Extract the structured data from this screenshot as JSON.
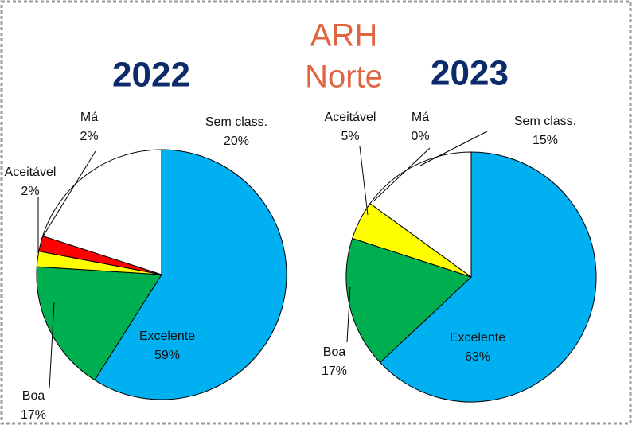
{
  "title_lines": [
    "ARH",
    "Norte"
  ],
  "chart_data": [
    {
      "type": "pie",
      "title": "2022",
      "categories": [
        "Excelente",
        "Boa",
        "Aceitável",
        "Má",
        "Sem class."
      ],
      "values": [
        59,
        17,
        2,
        2,
        20
      ],
      "value_labels": [
        "59%",
        "17%",
        "2%",
        "2%",
        "20%"
      ],
      "colors": [
        "#00b0f0",
        "#00b050",
        "#ffff00",
        "#ff0000",
        "#ffffff"
      ]
    },
    {
      "type": "pie",
      "title": "2023",
      "categories": [
        "Excelente",
        "Boa",
        "Aceitável",
        "Má",
        "Sem class."
      ],
      "values": [
        63,
        17,
        5,
        0,
        15
      ],
      "value_labels": [
        "63%",
        "17%",
        "5%",
        "0%",
        "15%"
      ],
      "colors": [
        "#00b0f0",
        "#00b050",
        "#ffff00",
        "#ff0000",
        "#ffffff"
      ]
    }
  ]
}
